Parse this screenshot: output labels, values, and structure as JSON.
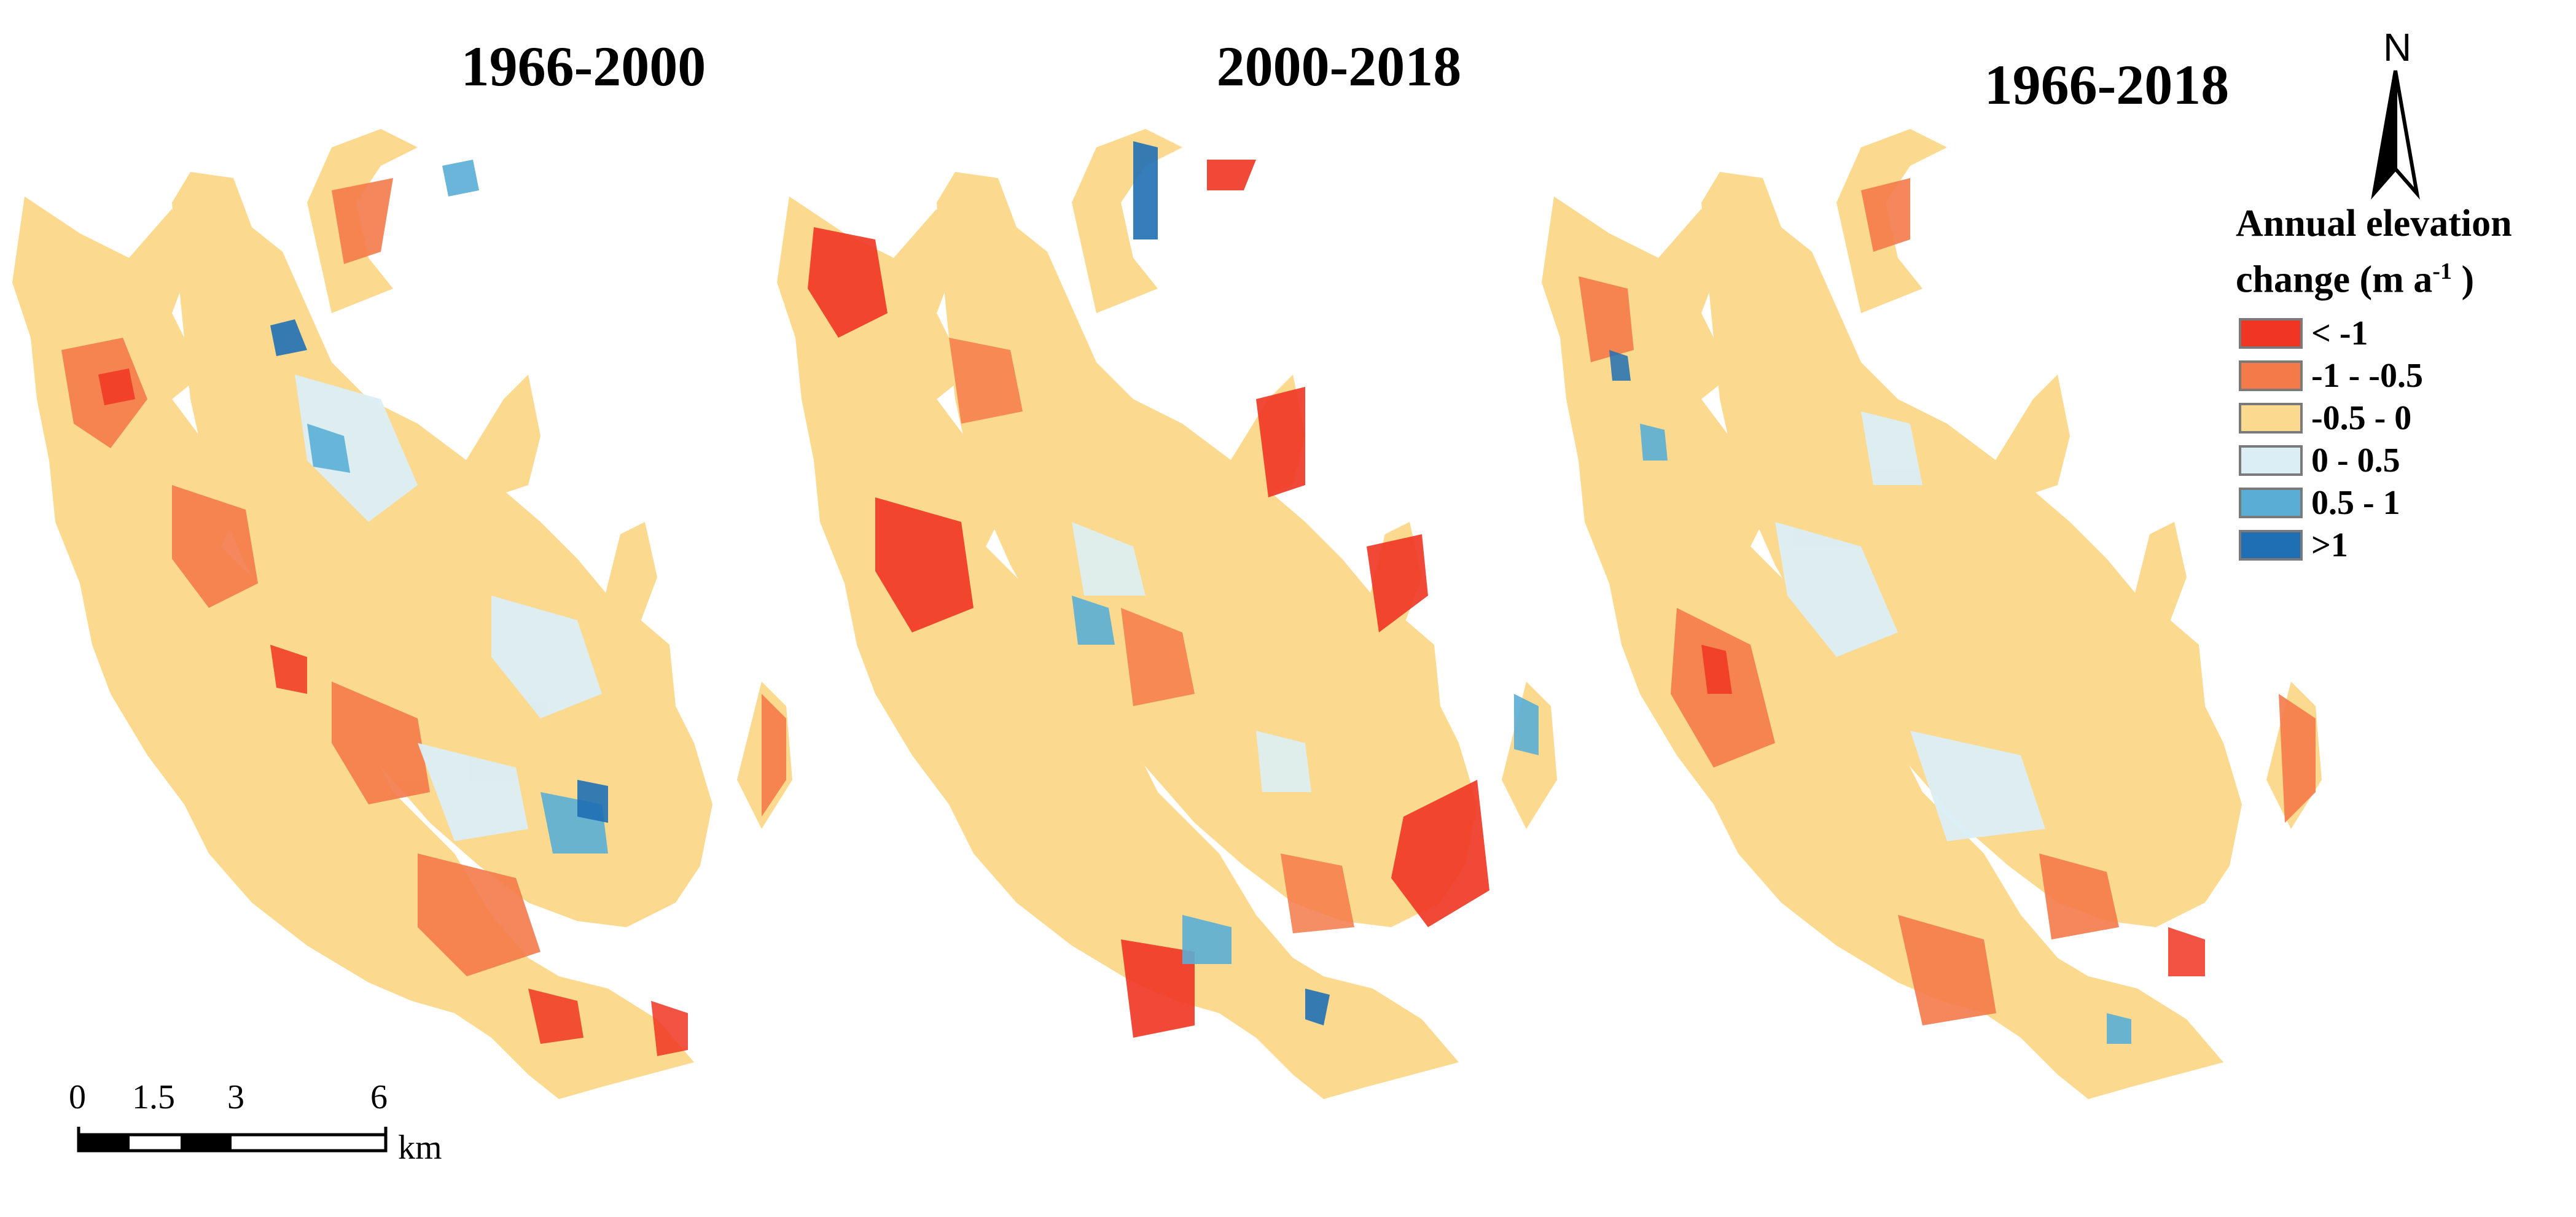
{
  "panels": [
    {
      "title": "1966-2000"
    },
    {
      "title": "2000-2018"
    },
    {
      "title": "1966-2018"
    }
  ],
  "north_arrow": {
    "label": "N"
  },
  "legend": {
    "title_line1": "Annual elevation",
    "title_line2_prefix": "change (m a",
    "title_line2_sup": "-1",
    "title_line2_suffix": " )",
    "items": [
      {
        "label": "< -1",
        "color": "#f03522"
      },
      {
        "label": "-1 - -0.5",
        "color": "#f47a4a"
      },
      {
        "label": "-0.5 - 0",
        "color": "#fbd98e"
      },
      {
        "label": "0 - 0.5",
        "color": "#dbeef5"
      },
      {
        "label": "0.5 - 1",
        "color": "#5aaed6"
      },
      {
        "label": ">1",
        "color": "#1f6fb4"
      }
    ]
  },
  "scale_bar": {
    "ticks": [
      "0",
      "1.5",
      "3",
      "6"
    ],
    "unit": "km"
  }
}
